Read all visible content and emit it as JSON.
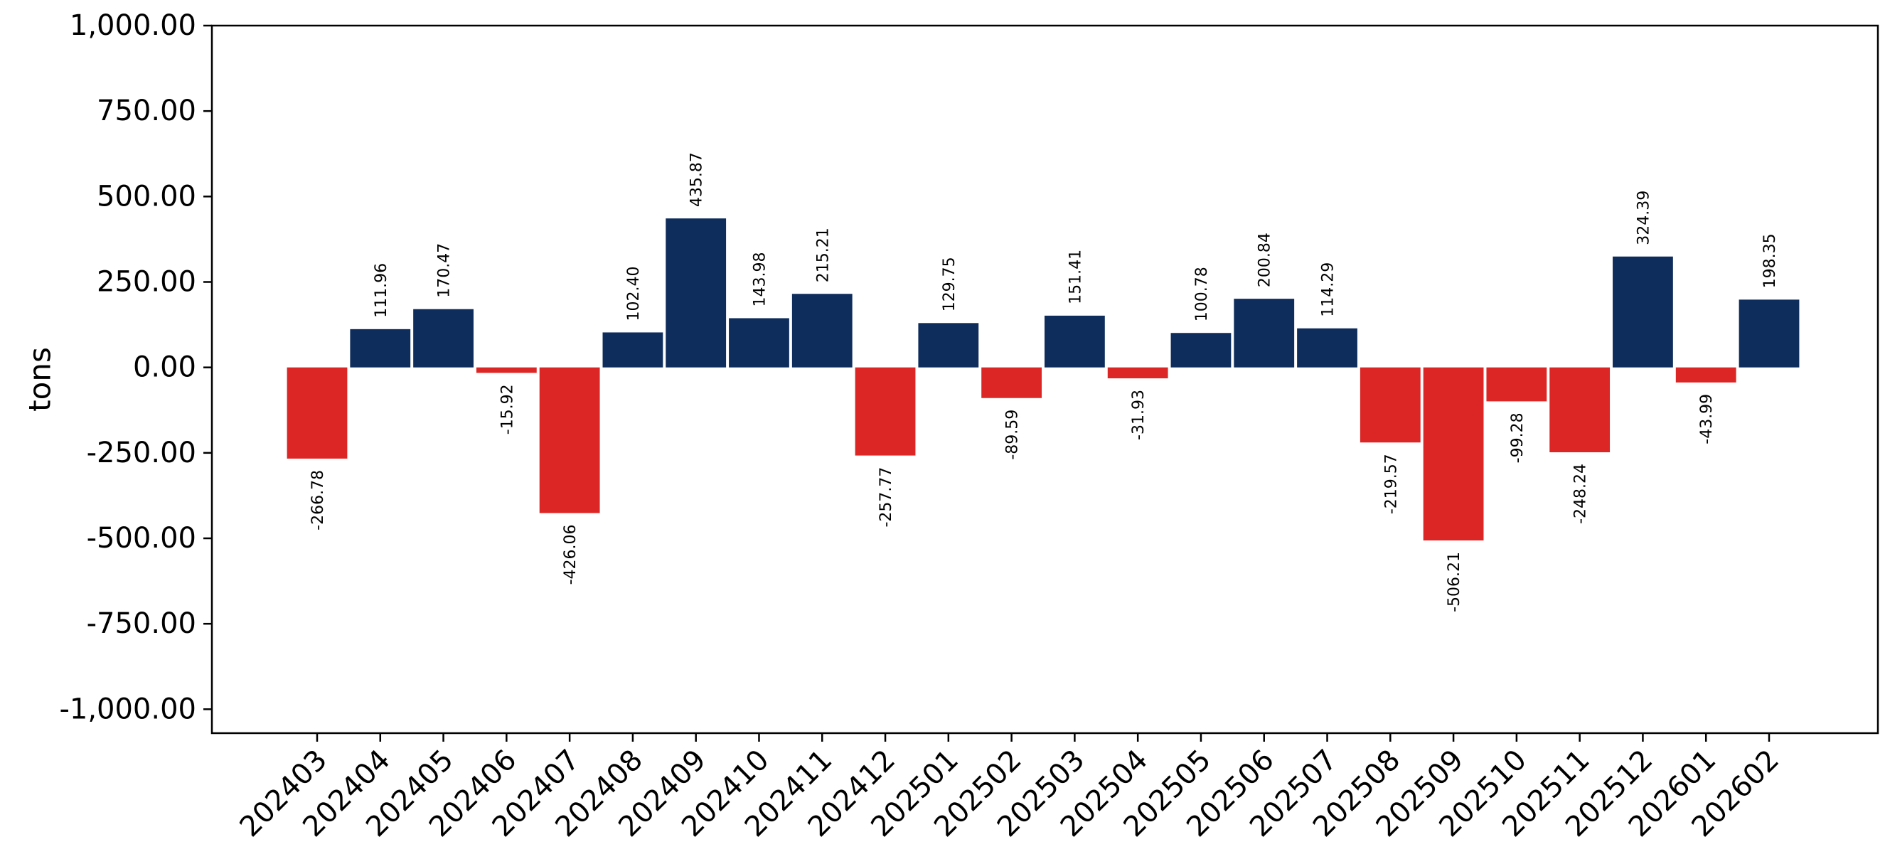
{
  "chart_data": {
    "type": "bar",
    "title": "",
    "xlabel": "",
    "ylabel": "tons",
    "ylim": [
      -1070,
      1000
    ],
    "yticks": [
      1000,
      750,
      500,
      250,
      0,
      -250,
      -500,
      -750,
      -1000
    ],
    "ytick_labels": [
      "1,000.00",
      "750.00",
      "500.00",
      "250.00",
      "0.00",
      "-250.00",
      "-500.00",
      "-750.00",
      "-1,000.00"
    ],
    "grid": false,
    "legend": "none",
    "colors": {
      "positive": "#0f2d5c",
      "negative": "#dc2626"
    },
    "categories": [
      "202403",
      "202404",
      "202405",
      "202406",
      "202407",
      "202408",
      "202409",
      "202410",
      "202411",
      "202412",
      "202501",
      "202502",
      "202503",
      "202504",
      "202505",
      "202506",
      "202507",
      "202508",
      "202509",
      "202510",
      "202511",
      "202512",
      "202601",
      "202602"
    ],
    "values": [
      -266.78,
      111.96,
      170.47,
      -15.92,
      -426.06,
      102.4,
      435.87,
      143.98,
      215.21,
      -257.77,
      129.75,
      -89.59,
      151.41,
      -31.93,
      100.78,
      200.84,
      114.29,
      -219.57,
      -506.21,
      -99.28,
      -248.24,
      324.39,
      -43.99,
      198.35
    ],
    "value_labels": [
      "-266.78",
      "111.96",
      "170.47",
      "-15.92",
      "-426.06",
      "102.40",
      "435.87",
      "143.98",
      "215.21",
      "-257.77",
      "129.75",
      "-89.59",
      "151.41",
      "-31.93",
      "100.78",
      "200.84",
      "114.29",
      "-219.57",
      "-506.21",
      "-99.28",
      "-248.24",
      "324.39",
      "-43.99",
      "198.35"
    ]
  }
}
